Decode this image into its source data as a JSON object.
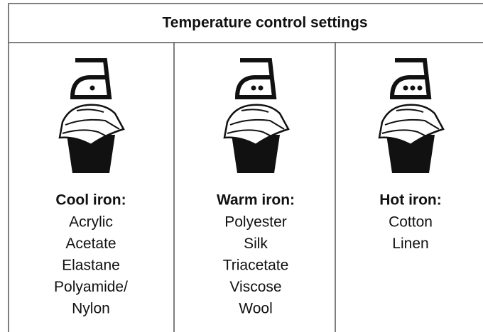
{
  "header": {
    "title": "Temperature control settings"
  },
  "columns": [
    {
      "heading": "Cool iron:",
      "items": [
        "Acrylic",
        "Acetate",
        "Elastane",
        "Polyamide/",
        "Nylon"
      ]
    },
    {
      "heading": "Warm iron:",
      "items": [
        "Polyester",
        "Silk",
        "Triacetate",
        "Viscose",
        "Wool"
      ]
    },
    {
      "heading": "Hot iron:",
      "items": [
        "Cotton",
        "Linen"
      ]
    }
  ]
}
